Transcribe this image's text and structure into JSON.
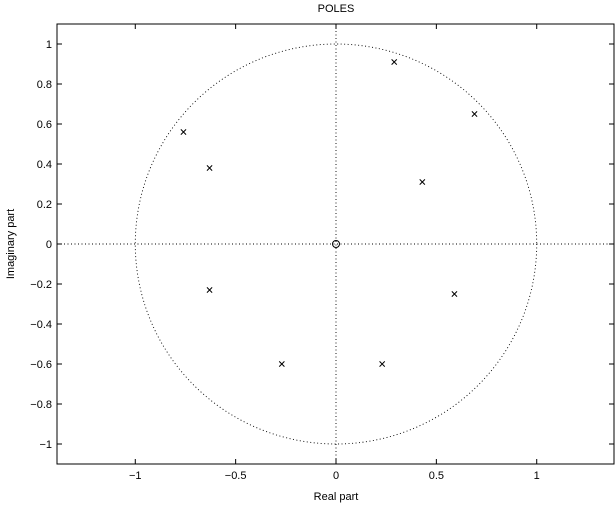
{
  "chart_data": {
    "type": "scatter",
    "title": "POLES",
    "xlabel": "Real part",
    "ylabel": "Imaginary part",
    "xlim": [
      -1.39,
      1.39
    ],
    "ylim": [
      -1.1,
      1.1
    ],
    "grid": false,
    "xticks": [
      -1,
      -0.5,
      0,
      0.5,
      1
    ],
    "xtick_labels": [
      "−1",
      "−0.5",
      "0",
      "0.5",
      "1"
    ],
    "yticks": [
      -1,
      -0.8,
      -0.6,
      -0.4,
      -0.2,
      0,
      0.2,
      0.4,
      0.6,
      0.8,
      1
    ],
    "ytick_labels": [
      "−1",
      "−0.8",
      "−0.6",
      "−0.4",
      "−0.2",
      "0",
      "0.2",
      "0.4",
      "0.6",
      "0.8",
      "1"
    ],
    "unit_circle": {
      "radius": 1,
      "style": "dotted"
    },
    "reference_lines": {
      "x": 0,
      "y": 0,
      "style": "dotted"
    },
    "series": [
      {
        "marker": "x",
        "points": [
          {
            "x": 0.29,
            "y": 0.91
          },
          {
            "x": 0.69,
            "y": 0.65
          },
          {
            "x": 0.43,
            "y": 0.31
          },
          {
            "x": 0.59,
            "y": -0.25
          },
          {
            "x": 0.23,
            "y": -0.6
          },
          {
            "x": -0.27,
            "y": -0.6
          },
          {
            "x": -0.63,
            "y": -0.23
          },
          {
            "x": -0.63,
            "y": 0.38
          },
          {
            "x": -0.76,
            "y": 0.56
          }
        ]
      },
      {
        "marker": "o",
        "points": [
          {
            "x": 0,
            "y": 0
          }
        ]
      }
    ]
  }
}
